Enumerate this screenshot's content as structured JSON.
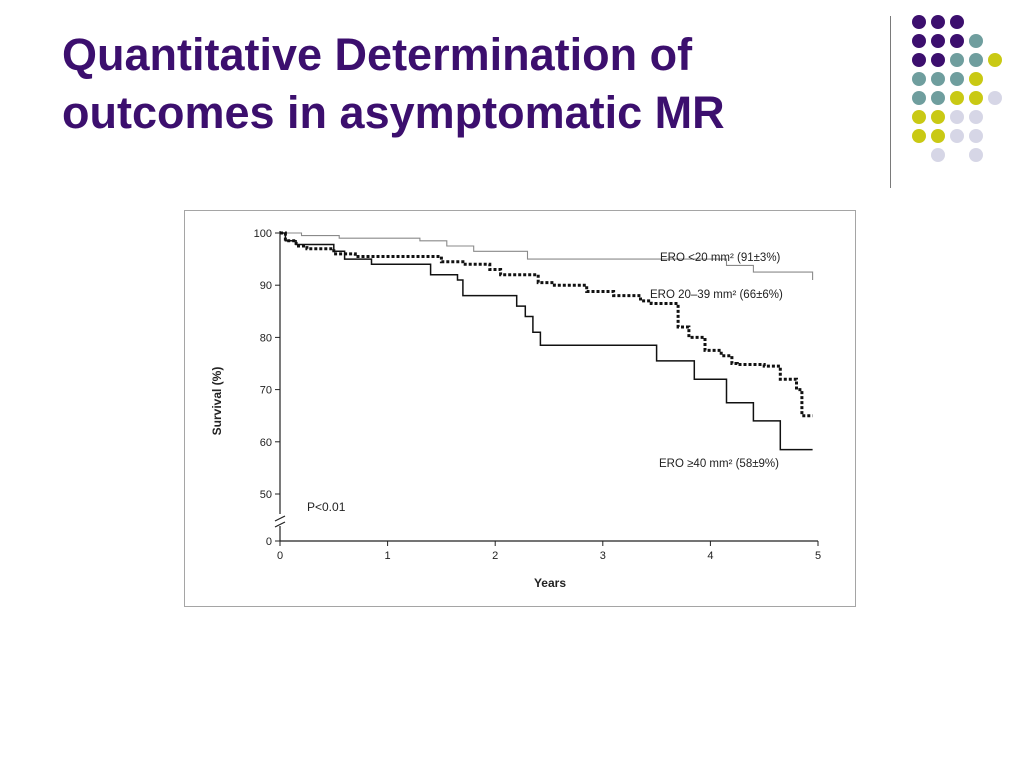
{
  "slide": {
    "title_line1": "Quantitative Determination of",
    "title_line2": "outcomes in asymptomatic MR",
    "title_color": "#3c0f6e",
    "decor_colors": [
      "#3c0f6e",
      "#6f9e9e",
      "#c9c914",
      "#d6d6e6"
    ]
  },
  "chart_data": {
    "type": "line",
    "step": true,
    "xlabel": "Years",
    "ylabel": "Survival (%)",
    "xlim": [
      0,
      5
    ],
    "ylim": [
      0,
      100
    ],
    "axis_break": true,
    "x_ticks": [
      "0",
      "1",
      "2",
      "3",
      "4",
      "5"
    ],
    "y_ticks": [
      "0",
      "50",
      "60",
      "70",
      "80",
      "90",
      "100"
    ],
    "grid": false,
    "annotation": "P<0.01",
    "series": [
      {
        "name": "ERO <20 mm² (91±3%)",
        "style": "thin-gray",
        "x": [
          0,
          0.2,
          0.55,
          1.3,
          1.55,
          1.8,
          2.3,
          4.15,
          4.4,
          4.95
        ],
        "y": [
          100,
          99.5,
          99,
          98.5,
          97.5,
          96.5,
          95,
          93.8,
          92.5,
          91
        ]
      },
      {
        "name": "ERO 20–39 mm² (66±6%)",
        "style": "dotted-bold",
        "x": [
          0,
          0.05,
          0.15,
          0.25,
          0.5,
          0.7,
          1.5,
          1.7,
          1.95,
          2.05,
          2.4,
          2.55,
          2.85,
          3.1,
          3.35,
          3.45,
          3.7,
          3.8,
          3.95,
          4.1,
          4.2,
          4.25,
          4.5,
          4.65,
          4.8,
          4.85,
          4.95
        ],
        "y": [
          100,
          98.5,
          97.5,
          97,
          96,
          95.5,
          94.5,
          94,
          93,
          92,
          90.5,
          90,
          88.8,
          88,
          87,
          86.5,
          82,
          80,
          77.5,
          76.5,
          75,
          74.8,
          74.5,
          72,
          70,
          65,
          65
        ]
      },
      {
        "name": "ERO ≥40 mm² (58±9%)",
        "style": "solid",
        "x": [
          0,
          0.05,
          0.15,
          0.5,
          0.6,
          0.85,
          1.4,
          1.65,
          1.7,
          2.2,
          2.28,
          2.35,
          2.42,
          3.5,
          3.85,
          4.15,
          4.4,
          4.65,
          4.95
        ],
        "y": [
          100,
          98.5,
          97.8,
          96.5,
          95,
          94,
          92,
          91,
          88,
          86,
          84,
          81,
          78.5,
          75.5,
          72,
          67.5,
          64,
          58.5,
          58.5
        ]
      }
    ]
  }
}
